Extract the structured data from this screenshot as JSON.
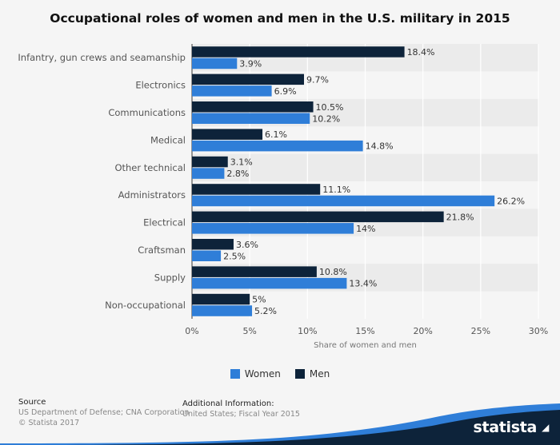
{
  "title": "Occupational roles of women and men in the U.S. military in 2015",
  "legend": {
    "women": "Women",
    "men": "Men"
  },
  "colors": {
    "women": "#2f7ed8",
    "men": "#0d233a",
    "band": "#ebebeb",
    "grid": "#ffffff"
  },
  "footer": {
    "source_head": "Source",
    "source_line1": "US Department of Defense; CNA Corporation",
    "source_line2": "© Statista 2017",
    "info_head": "Additional Information:",
    "info_line1": "United States; Fiscal Year 2015"
  },
  "brand": {
    "name": "statista",
    "icon": "arrow-icon"
  },
  "chart_data": {
    "type": "bar",
    "orientation": "horizontal",
    "title": "Occupational roles of women and men in the U.S. military in 2015",
    "xlabel": "Share of women and men",
    "ylabel": "",
    "xlim": [
      0,
      30
    ],
    "xticks": [
      0,
      5,
      10,
      15,
      20,
      25,
      30
    ],
    "xtick_labels": [
      "0%",
      "5%",
      "10%",
      "15%",
      "20%",
      "25%",
      "30%"
    ],
    "categories": [
      "Infantry, gun crews and seamanship",
      "Electronics",
      "Communications",
      "Medical",
      "Other technical",
      "Administrators",
      "Electrical",
      "Craftsman",
      "Supply",
      "Non-occupational"
    ],
    "series": [
      {
        "name": "Men",
        "values": [
          18.4,
          9.7,
          10.5,
          6.1,
          3.1,
          11.1,
          21.8,
          3.6,
          10.8,
          5
        ],
        "labels": [
          "18.4%",
          "9.7%",
          "10.5%",
          "6.1%",
          "3.1%",
          "11.1%",
          "21.8%",
          "3.6%",
          "10.8%",
          "5%"
        ]
      },
      {
        "name": "Women",
        "values": [
          3.9,
          6.9,
          10.2,
          14.8,
          2.8,
          26.2,
          14,
          2.5,
          13.4,
          5.2
        ],
        "labels": [
          "3.9%",
          "6.9%",
          "10.2%",
          "14.8%",
          "2.8%",
          "26.2%",
          "14%",
          "2.5%",
          "13.4%",
          "5.2%"
        ]
      }
    ],
    "grid": true,
    "legend_position": "bottom"
  }
}
